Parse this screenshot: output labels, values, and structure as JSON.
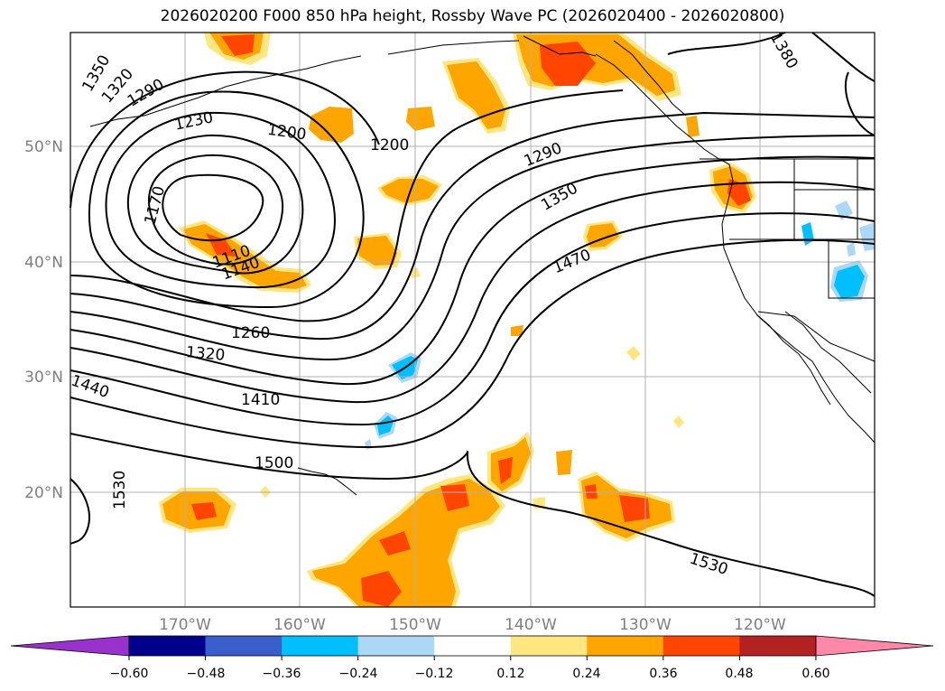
{
  "title": "2026020200 F000 850 hPa height, Rossby Wave PC (2026020400 - 2026020800)",
  "lat_ticks": [
    "50°N",
    "40°N",
    "30°N",
    "20°N"
  ],
  "lon_ticks": [
    "170°W",
    "160°W",
    "150°W",
    "140°W",
    "130°W",
    "120°W"
  ],
  "contour_labels": [
    "1350",
    "1320",
    "1290",
    "1230",
    "1200",
    "1200",
    "1170",
    "1110",
    "1140",
    "1260",
    "1320",
    "1410",
    "1440",
    "1500",
    "1530",
    "1530",
    "1290",
    "1350",
    "1470",
    "1380"
  ],
  "colorbar": {
    "ticks": [
      "−0.60",
      "−0.48",
      "−0.36",
      "−0.24",
      "−0.12",
      "0.12",
      "0.24",
      "0.36",
      "0.48",
      "0.60"
    ],
    "colors": [
      "#9932cc",
      "#00008b",
      "#3a5fcd",
      "#00bfff",
      "#add8f5",
      "#ffffff",
      "#ffe680",
      "#ffa500",
      "#ff4500",
      "#b22222",
      "#ff88aa"
    ]
  },
  "colors": {
    "contour": "#000000",
    "grid": "#b0b0b0",
    "tick_label": "#7f7f7f",
    "pos_low": "#ffe680",
    "pos_mid": "#ffa500",
    "pos_high": "#ff4500",
    "neg_low": "#add8f5",
    "neg_mid": "#00bfff"
  }
}
